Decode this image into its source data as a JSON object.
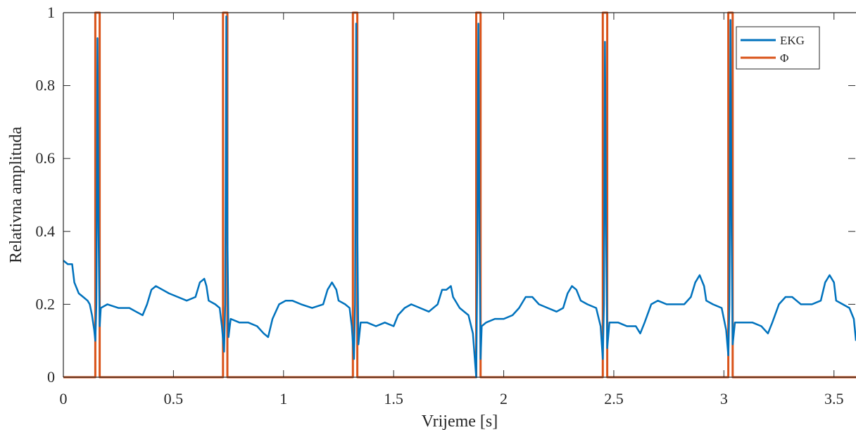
{
  "chart_data": {
    "type": "line",
    "title": "",
    "xlabel": "Vrijeme [s]",
    "ylabel": "Relativna amplituda",
    "xlim": [
      0,
      3.6
    ],
    "ylim": [
      0,
      1
    ],
    "x_ticks": [
      "0",
      "0.5",
      "1",
      "1.5",
      "2",
      "2.5",
      "3",
      "3.5"
    ],
    "y_ticks": [
      "0",
      "0.2",
      "0.4",
      "0.6",
      "0.8",
      "1"
    ],
    "grid": false,
    "legend_position": "top-right",
    "series": [
      {
        "name": "EKG",
        "color": "#0072BD",
        "points": [
          [
            0.0,
            0.32
          ],
          [
            0.02,
            0.31
          ],
          [
            0.04,
            0.31
          ],
          [
            0.05,
            0.26
          ],
          [
            0.07,
            0.23
          ],
          [
            0.09,
            0.22
          ],
          [
            0.11,
            0.21
          ],
          [
            0.12,
            0.2
          ],
          [
            0.13,
            0.17
          ],
          [
            0.14,
            0.13
          ],
          [
            0.145,
            0.1
          ],
          [
            0.15,
            0.2
          ],
          [
            0.155,
            0.93
          ],
          [
            0.16,
            0.4
          ],
          [
            0.165,
            0.14
          ],
          [
            0.17,
            0.19
          ],
          [
            0.2,
            0.2
          ],
          [
            0.25,
            0.19
          ],
          [
            0.3,
            0.19
          ],
          [
            0.33,
            0.18
          ],
          [
            0.36,
            0.17
          ],
          [
            0.38,
            0.2
          ],
          [
            0.4,
            0.24
          ],
          [
            0.42,
            0.25
          ],
          [
            0.45,
            0.24
          ],
          [
            0.48,
            0.23
          ],
          [
            0.52,
            0.22
          ],
          [
            0.56,
            0.21
          ],
          [
            0.6,
            0.22
          ],
          [
            0.62,
            0.26
          ],
          [
            0.64,
            0.27
          ],
          [
            0.65,
            0.25
          ],
          [
            0.66,
            0.21
          ],
          [
            0.69,
            0.2
          ],
          [
            0.71,
            0.19
          ],
          [
            0.72,
            0.14
          ],
          [
            0.73,
            0.07
          ],
          [
            0.735,
            0.2
          ],
          [
            0.74,
            0.99
          ],
          [
            0.745,
            0.4
          ],
          [
            0.75,
            0.11
          ],
          [
            0.76,
            0.16
          ],
          [
            0.8,
            0.15
          ],
          [
            0.84,
            0.15
          ],
          [
            0.88,
            0.14
          ],
          [
            0.91,
            0.12
          ],
          [
            0.93,
            0.11
          ],
          [
            0.95,
            0.16
          ],
          [
            0.98,
            0.2
          ],
          [
            1.01,
            0.21
          ],
          [
            1.04,
            0.21
          ],
          [
            1.08,
            0.2
          ],
          [
            1.13,
            0.19
          ],
          [
            1.18,
            0.2
          ],
          [
            1.2,
            0.24
          ],
          [
            1.22,
            0.26
          ],
          [
            1.24,
            0.24
          ],
          [
            1.25,
            0.21
          ],
          [
            1.28,
            0.2
          ],
          [
            1.3,
            0.19
          ],
          [
            1.31,
            0.14
          ],
          [
            1.32,
            0.05
          ],
          [
            1.325,
            0.2
          ],
          [
            1.33,
            0.97
          ],
          [
            1.335,
            0.4
          ],
          [
            1.34,
            0.09
          ],
          [
            1.35,
            0.15
          ],
          [
            1.38,
            0.15
          ],
          [
            1.42,
            0.14
          ],
          [
            1.46,
            0.15
          ],
          [
            1.5,
            0.14
          ],
          [
            1.52,
            0.17
          ],
          [
            1.55,
            0.19
          ],
          [
            1.58,
            0.2
          ],
          [
            1.62,
            0.19
          ],
          [
            1.66,
            0.18
          ],
          [
            1.7,
            0.2
          ],
          [
            1.72,
            0.24
          ],
          [
            1.74,
            0.24
          ],
          [
            1.76,
            0.25
          ],
          [
            1.77,
            0.22
          ],
          [
            1.8,
            0.19
          ],
          [
            1.84,
            0.17
          ],
          [
            1.86,
            0.12
          ],
          [
            1.87,
            0.04
          ],
          [
            1.875,
            0.0
          ],
          [
            1.88,
            0.3
          ],
          [
            1.885,
            0.97
          ],
          [
            1.89,
            0.4
          ],
          [
            1.895,
            0.05
          ],
          [
            1.9,
            0.14
          ],
          [
            1.92,
            0.15
          ],
          [
            1.96,
            0.16
          ],
          [
            2.0,
            0.16
          ],
          [
            2.04,
            0.17
          ],
          [
            2.07,
            0.19
          ],
          [
            2.1,
            0.22
          ],
          [
            2.13,
            0.22
          ],
          [
            2.16,
            0.2
          ],
          [
            2.2,
            0.19
          ],
          [
            2.24,
            0.18
          ],
          [
            2.27,
            0.19
          ],
          [
            2.29,
            0.23
          ],
          [
            2.31,
            0.25
          ],
          [
            2.33,
            0.24
          ],
          [
            2.35,
            0.21
          ],
          [
            2.38,
            0.2
          ],
          [
            2.42,
            0.19
          ],
          [
            2.44,
            0.14
          ],
          [
            2.45,
            0.05
          ],
          [
            2.455,
            0.2
          ],
          [
            2.46,
            0.92
          ],
          [
            2.465,
            0.4
          ],
          [
            2.47,
            0.08
          ],
          [
            2.48,
            0.15
          ],
          [
            2.52,
            0.15
          ],
          [
            2.56,
            0.14
          ],
          [
            2.6,
            0.14
          ],
          [
            2.62,
            0.12
          ],
          [
            2.64,
            0.15
          ],
          [
            2.67,
            0.2
          ],
          [
            2.7,
            0.21
          ],
          [
            2.74,
            0.2
          ],
          [
            2.78,
            0.2
          ],
          [
            2.82,
            0.2
          ],
          [
            2.85,
            0.22
          ],
          [
            2.87,
            0.26
          ],
          [
            2.89,
            0.28
          ],
          [
            2.91,
            0.25
          ],
          [
            2.92,
            0.21
          ],
          [
            2.95,
            0.2
          ],
          [
            2.99,
            0.19
          ],
          [
            3.01,
            0.13
          ],
          [
            3.02,
            0.06
          ],
          [
            3.025,
            0.2
          ],
          [
            3.03,
            0.98
          ],
          [
            3.035,
            0.4
          ],
          [
            3.04,
            0.09
          ],
          [
            3.05,
            0.15
          ],
          [
            3.09,
            0.15
          ],
          [
            3.13,
            0.15
          ],
          [
            3.17,
            0.14
          ],
          [
            3.2,
            0.12
          ],
          [
            3.22,
            0.15
          ],
          [
            3.25,
            0.2
          ],
          [
            3.28,
            0.22
          ],
          [
            3.31,
            0.22
          ],
          [
            3.35,
            0.2
          ],
          [
            3.4,
            0.2
          ],
          [
            3.44,
            0.21
          ],
          [
            3.46,
            0.26
          ],
          [
            3.48,
            0.28
          ],
          [
            3.5,
            0.26
          ],
          [
            3.51,
            0.21
          ],
          [
            3.54,
            0.2
          ],
          [
            3.57,
            0.19
          ],
          [
            3.59,
            0.16
          ],
          [
            3.6,
            0.1
          ]
        ]
      },
      {
        "name": "Φ",
        "color": "#D95319",
        "pulses": [
          [
            0.145,
            0.165
          ],
          [
            0.725,
            0.745
          ],
          [
            1.315,
            1.335
          ],
          [
            1.875,
            1.895
          ],
          [
            2.45,
            2.47
          ],
          [
            3.02,
            3.04
          ]
        ]
      }
    ]
  }
}
